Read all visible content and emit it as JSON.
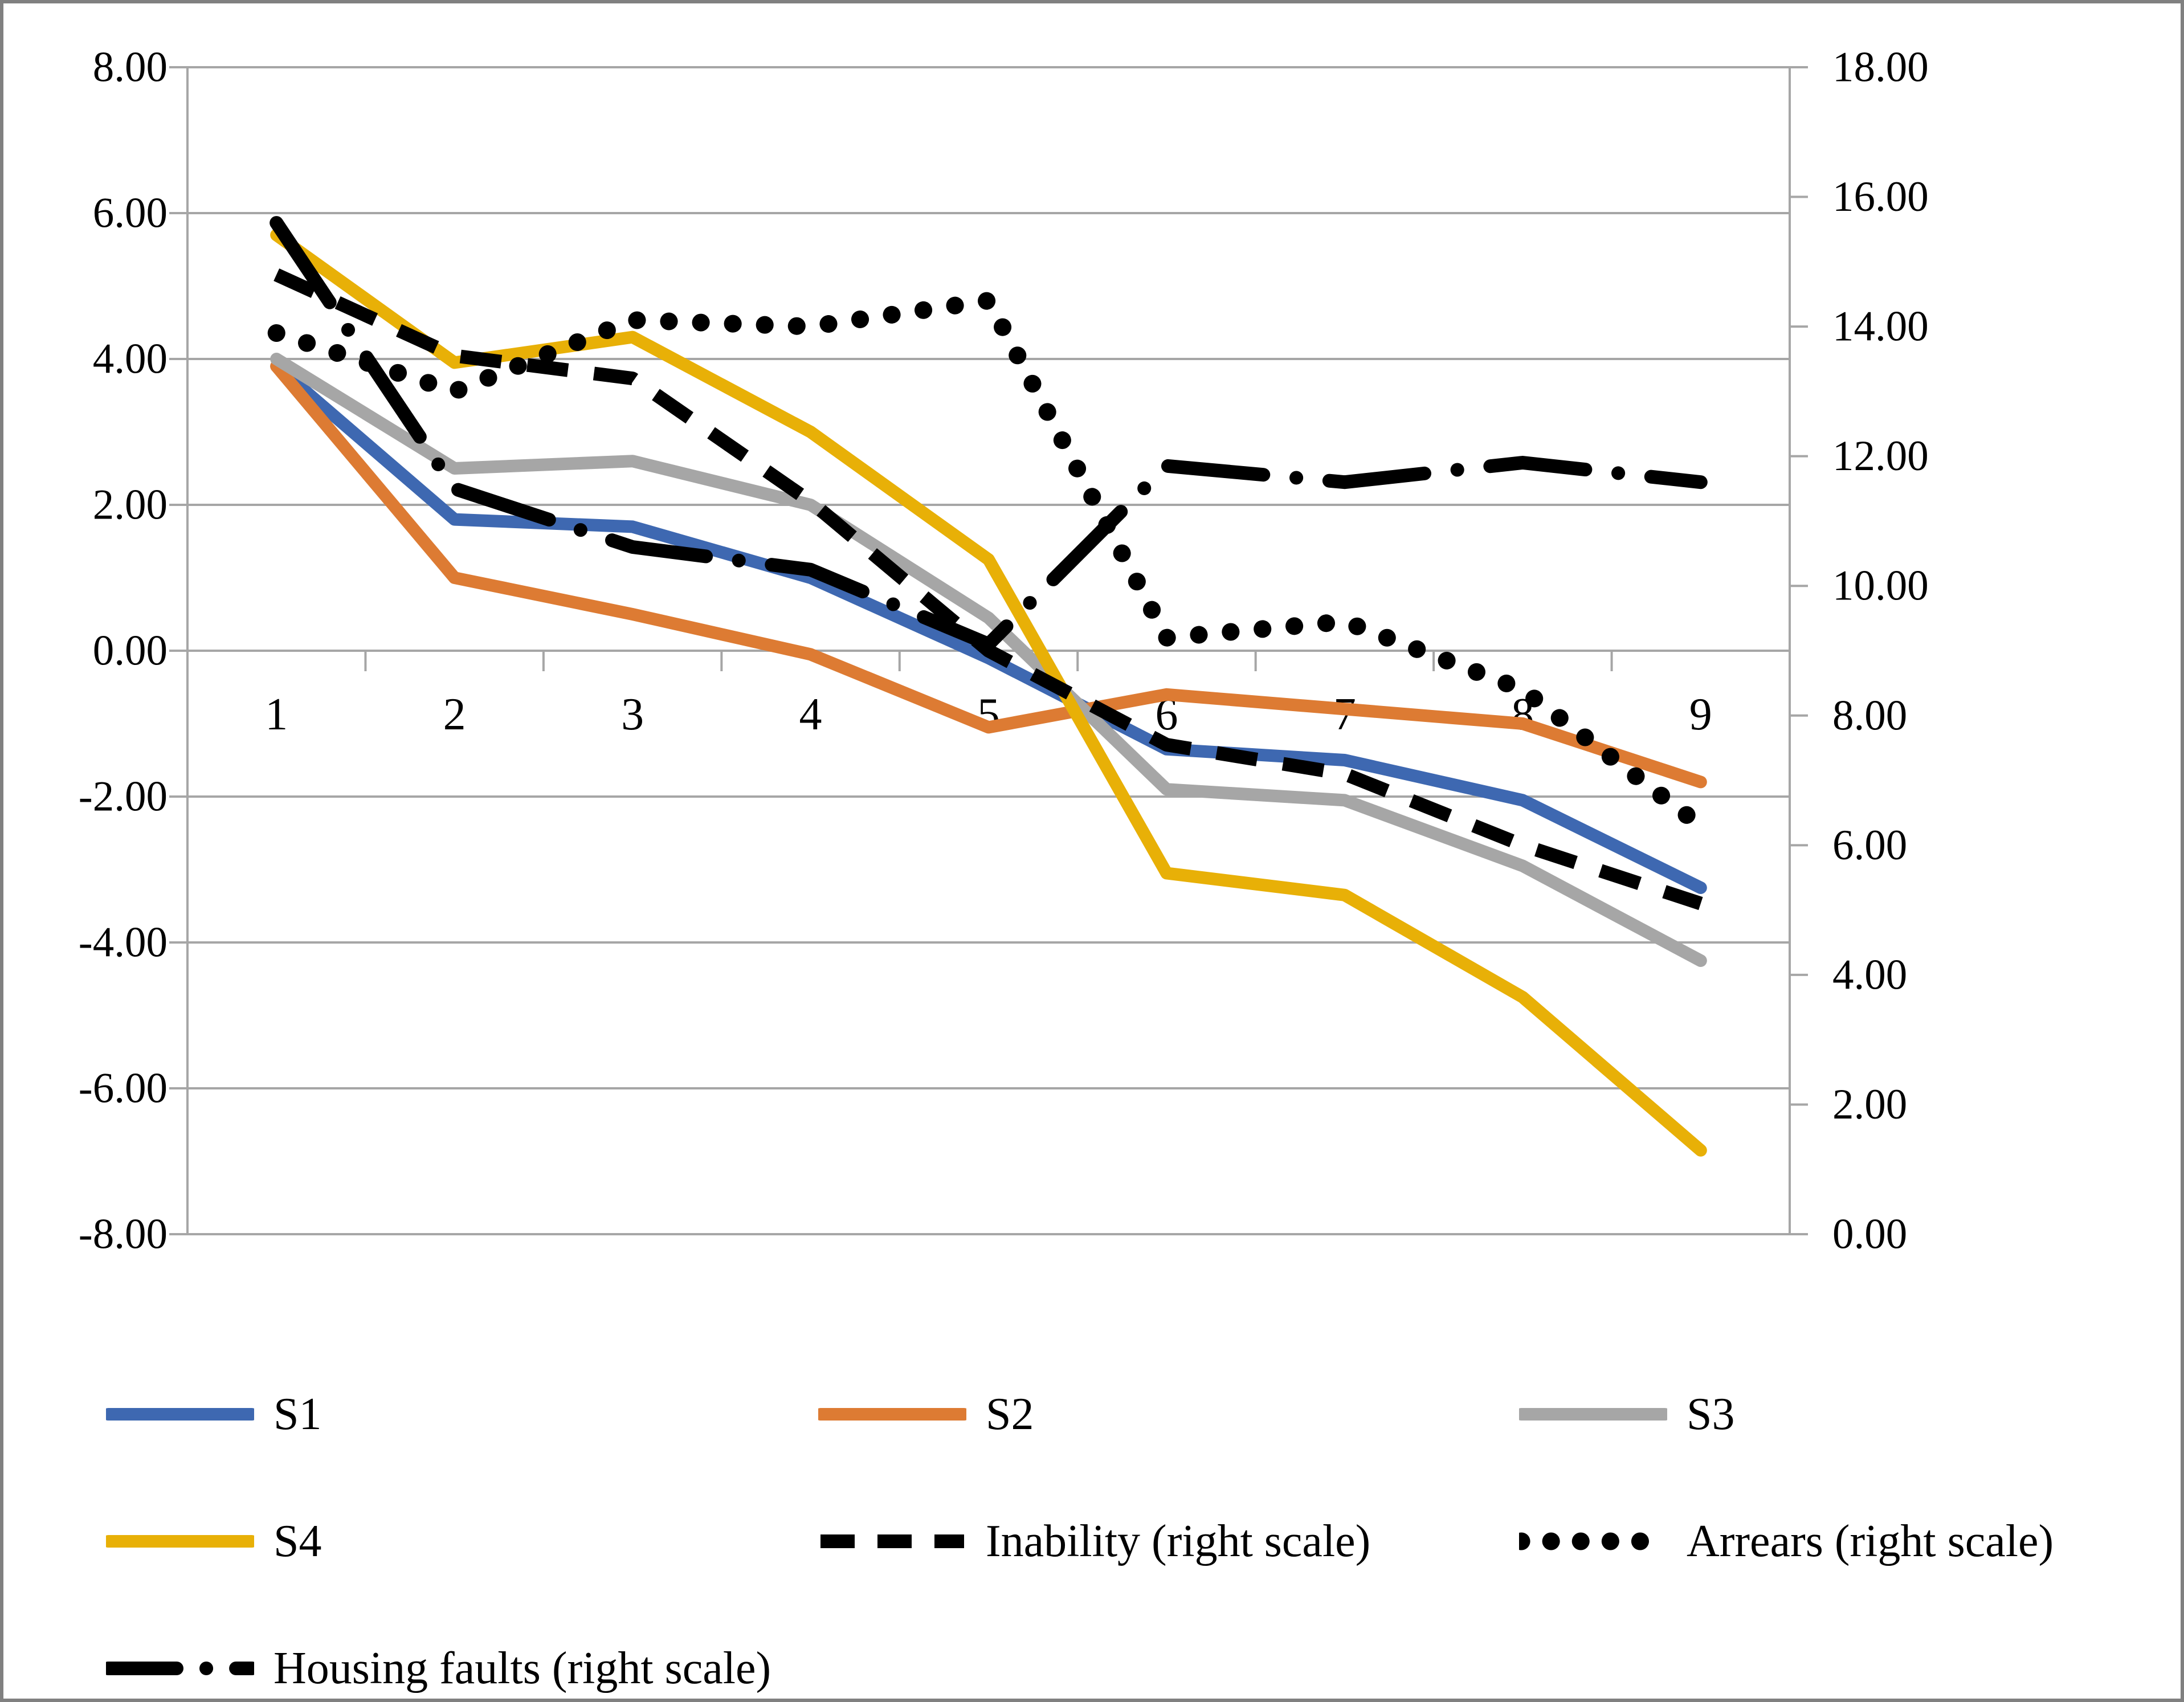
{
  "chart_data": {
    "type": "line",
    "title": "",
    "categories": [
      "1",
      "2",
      "3",
      "4",
      "5",
      "6",
      "7",
      "8",
      "9"
    ],
    "series": [
      {
        "name": "S1",
        "axis": "left",
        "color": "#3E68B1",
        "style": "solid",
        "values": [
          3.9,
          1.8,
          1.7,
          1.0,
          -0.1,
          -1.35,
          -1.5,
          -2.05,
          -3.25
        ]
      },
      {
        "name": "S2",
        "axis": "left",
        "color": "#DD7B33",
        "style": "solid",
        "values": [
          3.9,
          1.0,
          0.5,
          -0.05,
          -1.05,
          -0.6,
          -0.8,
          -1.0,
          -1.8
        ]
      },
      {
        "name": "S3",
        "axis": "left",
        "color": "#A6A6A6",
        "style": "solid",
        "values": [
          4.0,
          2.5,
          2.6,
          2.0,
          0.45,
          -1.9,
          -2.05,
          -2.95,
          -4.25
        ]
      },
      {
        "name": "S4",
        "axis": "left",
        "color": "#E8B007",
        "style": "solid",
        "values": [
          5.7,
          3.95,
          4.3,
          3.0,
          1.25,
          -3.05,
          -3.35,
          -4.75,
          -6.85
        ]
      },
      {
        "name": "Inability (right scale)",
        "axis": "right",
        "color": "#000000",
        "style": "dashed",
        "values": [
          14.8,
          13.55,
          13.2,
          11.3,
          9.0,
          7.55,
          7.1,
          6.0,
          5.1
        ]
      },
      {
        "name": "Arrears (right scale)",
        "axis": "right",
        "color": "#000000",
        "style": "dotted",
        "values": [
          13.9,
          13.0,
          14.1,
          14.0,
          14.4,
          9.2,
          9.45,
          8.4,
          6.3
        ]
      },
      {
        "name": "Housing faults (right scale)",
        "axis": "right",
        "color": "#000000",
        "style": "dashdot",
        "values": [
          15.6,
          11.5,
          10.6,
          10.25,
          9.1,
          11.85,
          11.6,
          11.9,
          11.6
        ]
      }
    ],
    "left_axis": {
      "min": -8,
      "max": 8,
      "tick_labels": [
        "8.00",
        "6.00",
        "4.00",
        "2.00",
        "0.00",
        "-2.00",
        "-4.00",
        "-6.00",
        "-8.00"
      ]
    },
    "right_axis": {
      "min": 0,
      "max": 18,
      "tick_labels": [
        "18.00",
        "16.00",
        "14.00",
        "12.00",
        "10.00",
        "8.00",
        "6.00",
        "4.00",
        "2.00",
        "0.00"
      ]
    },
    "x_axis": {
      "tick_labels": [
        "1",
        "2",
        "3",
        "4",
        "5",
        "6",
        "7",
        "8",
        "9"
      ]
    },
    "grid": true,
    "legend_position": "bottom",
    "grid_color": "#A6A6A6",
    "background_color": "#FFFFFF",
    "frame_color": "#808080"
  }
}
